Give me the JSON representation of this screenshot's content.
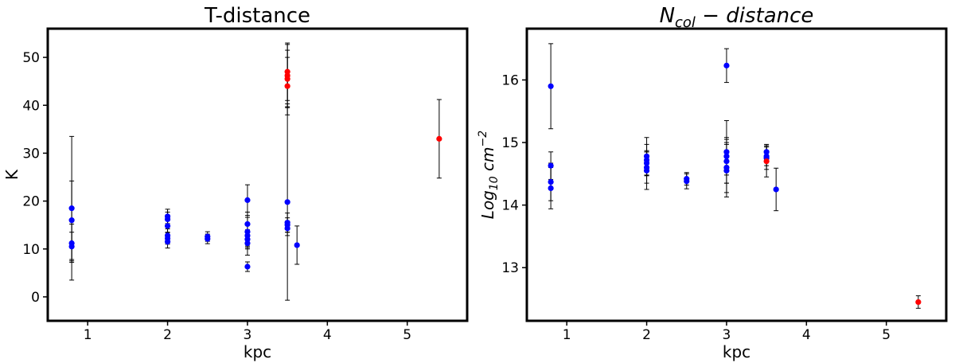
{
  "chart_data": [
    {
      "type": "scatter",
      "title": "T-distance",
      "xlabel": "kpc",
      "ylabel": "K",
      "xlim": [
        0.5,
        5.75
      ],
      "ylim": [
        -5,
        56
      ],
      "xticks": [
        1,
        2,
        3,
        4,
        5
      ],
      "yticks": [
        0,
        10,
        20,
        30,
        40,
        50
      ],
      "grid": false,
      "legend": "none",
      "colors": {
        "blue": "#0000ff",
        "red": "#ff0000",
        "errorbar": "#000000"
      },
      "points": [
        {
          "x": 0.8,
          "y": 18.5,
          "err": 15.0,
          "color": "blue"
        },
        {
          "x": 0.8,
          "y": 16.0,
          "err": 8.2,
          "color": "blue"
        },
        {
          "x": 0.8,
          "y": 11.2,
          "err": 4.0,
          "color": "blue"
        },
        {
          "x": 0.8,
          "y": 10.5,
          "err": 3.0,
          "color": "blue"
        },
        {
          "x": 2.0,
          "y": 16.8,
          "err": 1.5,
          "color": "blue"
        },
        {
          "x": 2.0,
          "y": 16.2,
          "err": 1.5,
          "color": "blue"
        },
        {
          "x": 2.0,
          "y": 14.8,
          "err": 1.3,
          "color": "blue"
        },
        {
          "x": 2.0,
          "y": 12.8,
          "err": 1.4,
          "color": "blue"
        },
        {
          "x": 2.0,
          "y": 12.2,
          "err": 1.2,
          "color": "blue"
        },
        {
          "x": 2.0,
          "y": 11.5,
          "err": 1.3,
          "color": "blue"
        },
        {
          "x": 2.5,
          "y": 12.6,
          "err": 1.0,
          "color": "blue"
        },
        {
          "x": 2.5,
          "y": 12.1,
          "err": 1.0,
          "color": "blue"
        },
        {
          "x": 3.0,
          "y": 20.2,
          "err": 3.2,
          "color": "blue"
        },
        {
          "x": 3.0,
          "y": 15.2,
          "err": 2.5,
          "color": "blue"
        },
        {
          "x": 3.0,
          "y": 13.6,
          "err": 3.0,
          "color": "blue"
        },
        {
          "x": 3.0,
          "y": 12.8,
          "err": 2.5,
          "color": "blue"
        },
        {
          "x": 3.0,
          "y": 12.0,
          "err": 2.0,
          "color": "blue"
        },
        {
          "x": 3.0,
          "y": 11.2,
          "err": 2.5,
          "color": "blue"
        },
        {
          "x": 3.0,
          "y": 6.3,
          "err": 1.0,
          "color": "blue"
        },
        {
          "x": 3.5,
          "y": 19.8,
          "err": 20.5,
          "color": "blue"
        },
        {
          "x": 3.5,
          "y": 15.5,
          "err": 2.0,
          "color": "blue"
        },
        {
          "x": 3.5,
          "y": 15.0,
          "err": 1.5,
          "color": "blue"
        },
        {
          "x": 3.5,
          "y": 14.3,
          "err": 1.5,
          "color": "blue"
        },
        {
          "x": 3.5,
          "y": 47.0,
          "err": 6.0,
          "color": "red"
        },
        {
          "x": 3.5,
          "y": 46.2,
          "err": 6.5,
          "color": "red"
        },
        {
          "x": 3.5,
          "y": 45.5,
          "err": 6.0,
          "color": "red"
        },
        {
          "x": 3.5,
          "y": 44.0,
          "err": 6.0,
          "color": "red"
        },
        {
          "x": 3.62,
          "y": 10.8,
          "err": 4.0,
          "color": "blue"
        },
        {
          "x": 5.4,
          "y": 33.0,
          "err": 8.2,
          "color": "red"
        }
      ]
    },
    {
      "type": "scatter",
      "title": "N<sub>col</sub> − distance",
      "xlabel": "kpc",
      "ylabel": "Log10 cm^-2",
      "xlim": [
        0.5,
        5.75
      ],
      "ylim": [
        12.15,
        16.82
      ],
      "xticks": [
        1,
        2,
        3,
        4,
        5
      ],
      "yticks": [
        13,
        14,
        15,
        16
      ],
      "grid": false,
      "legend": "none",
      "colors": {
        "blue": "#0000ff",
        "red": "#ff0000",
        "errorbar": "#000000"
      },
      "points": [
        {
          "x": 0.8,
          "y": 15.9,
          "err": 0.68,
          "color": "blue"
        },
        {
          "x": 0.8,
          "y": 14.63,
          "err": 0.22,
          "color": "blue"
        },
        {
          "x": 0.8,
          "y": 14.37,
          "err": 0.3,
          "color": "blue"
        },
        {
          "x": 0.8,
          "y": 14.27,
          "err": 0.33,
          "color": "blue"
        },
        {
          "x": 2.0,
          "y": 14.78,
          "err": 0.3,
          "color": "blue"
        },
        {
          "x": 2.0,
          "y": 14.72,
          "err": 0.25,
          "color": "blue"
        },
        {
          "x": 2.0,
          "y": 14.67,
          "err": 0.2,
          "color": "blue"
        },
        {
          "x": 2.0,
          "y": 14.6,
          "err": 0.25,
          "color": "blue"
        },
        {
          "x": 2.0,
          "y": 14.55,
          "err": 0.3,
          "color": "blue"
        },
        {
          "x": 2.5,
          "y": 14.42,
          "err": 0.1,
          "color": "blue"
        },
        {
          "x": 2.5,
          "y": 14.38,
          "err": 0.12,
          "color": "blue"
        },
        {
          "x": 3.0,
          "y": 16.23,
          "err": 0.27,
          "color": "blue"
        },
        {
          "x": 3.0,
          "y": 14.85,
          "err": 0.5,
          "color": "blue"
        },
        {
          "x": 3.0,
          "y": 14.78,
          "err": 0.3,
          "color": "blue"
        },
        {
          "x": 3.0,
          "y": 14.7,
          "err": 0.35,
          "color": "blue"
        },
        {
          "x": 3.0,
          "y": 14.6,
          "err": 0.4,
          "color": "blue"
        },
        {
          "x": 3.0,
          "y": 14.55,
          "err": 0.42,
          "color": "blue"
        },
        {
          "x": 3.5,
          "y": 14.85,
          "err": 0.12,
          "color": "blue"
        },
        {
          "x": 3.5,
          "y": 14.78,
          "err": 0.15,
          "color": "blue"
        },
        {
          "x": 3.5,
          "y": 14.75,
          "err": 0.18,
          "color": "blue"
        },
        {
          "x": 3.5,
          "y": 14.7,
          "err": 0.25,
          "color": "red"
        },
        {
          "x": 3.62,
          "y": 14.25,
          "err": 0.34,
          "color": "blue"
        },
        {
          "x": 5.4,
          "y": 12.45,
          "err": 0.1,
          "color": "red"
        }
      ]
    }
  ]
}
